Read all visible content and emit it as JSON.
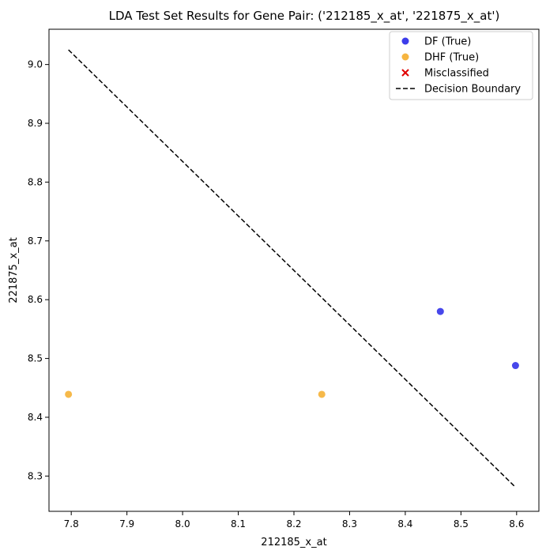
{
  "chart_data": {
    "type": "scatter",
    "title": "LDA Test Set Results for Gene Pair: ('212185_x_at', '221875_x_at')",
    "xlabel": "212185_x_at",
    "ylabel": "221875_x_at",
    "xlim": [
      7.76,
      8.64
    ],
    "ylim": [
      8.24,
      9.06
    ],
    "xticks": [
      "7.8",
      "7.9",
      "8.0",
      "8.1",
      "8.2",
      "8.3",
      "8.4",
      "8.5",
      "8.6"
    ],
    "yticks": [
      "8.3",
      "8.4",
      "8.5",
      "8.6",
      "8.7",
      "8.8",
      "8.9",
      "9.0"
    ],
    "grid": false,
    "legend_position": "top-right",
    "series": [
      {
        "name": "DF (True)",
        "kind": "scatter",
        "marker": "circle",
        "color": "#3d3dea",
        "points": [
          {
            "x": 8.463,
            "y": 8.58
          },
          {
            "x": 8.598,
            "y": 8.488
          }
        ]
      },
      {
        "name": "DHF (True)",
        "kind": "scatter",
        "marker": "circle",
        "color": "#f6b540",
        "points": [
          {
            "x": 7.795,
            "y": 8.439
          },
          {
            "x": 8.25,
            "y": 8.439
          }
        ]
      },
      {
        "name": "Misclassified",
        "kind": "scatter",
        "marker": "x",
        "color": "#e00000",
        "points": []
      },
      {
        "name": "Decision Boundary",
        "kind": "line",
        "dash": true,
        "color": "#000000",
        "points": [
          {
            "x": 7.795,
            "y": 9.025
          },
          {
            "x": 8.598,
            "y": 8.281
          }
        ]
      }
    ]
  }
}
